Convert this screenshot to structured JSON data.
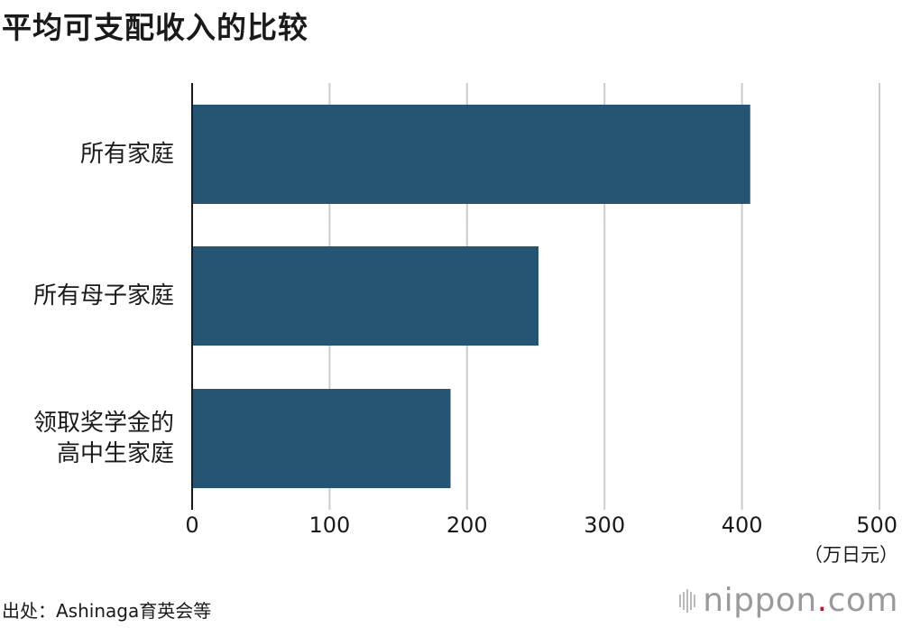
{
  "title": "平均可支配收入的比较",
  "source": "出处：Ashinaga育英会等",
  "logo": {
    "name": "nippon",
    "dot": ".",
    "tld": "com"
  },
  "colors": {
    "bar": "#255573",
    "grid": "#cccccc",
    "axis": "#1a1a1a",
    "brand_dot": "#c8102e"
  },
  "chart_data": {
    "type": "bar",
    "orientation": "horizontal",
    "categories": [
      [
        "所有家庭"
      ],
      [
        "所有母子家庭"
      ],
      [
        "领取奖学金的",
        "高中生家庭"
      ]
    ],
    "values": [
      406,
      252,
      188
    ],
    "xlim": [
      0,
      500
    ],
    "xticks": [
      0,
      100,
      200,
      300,
      400,
      500
    ],
    "xunit": "（万日元）",
    "grid": true
  }
}
